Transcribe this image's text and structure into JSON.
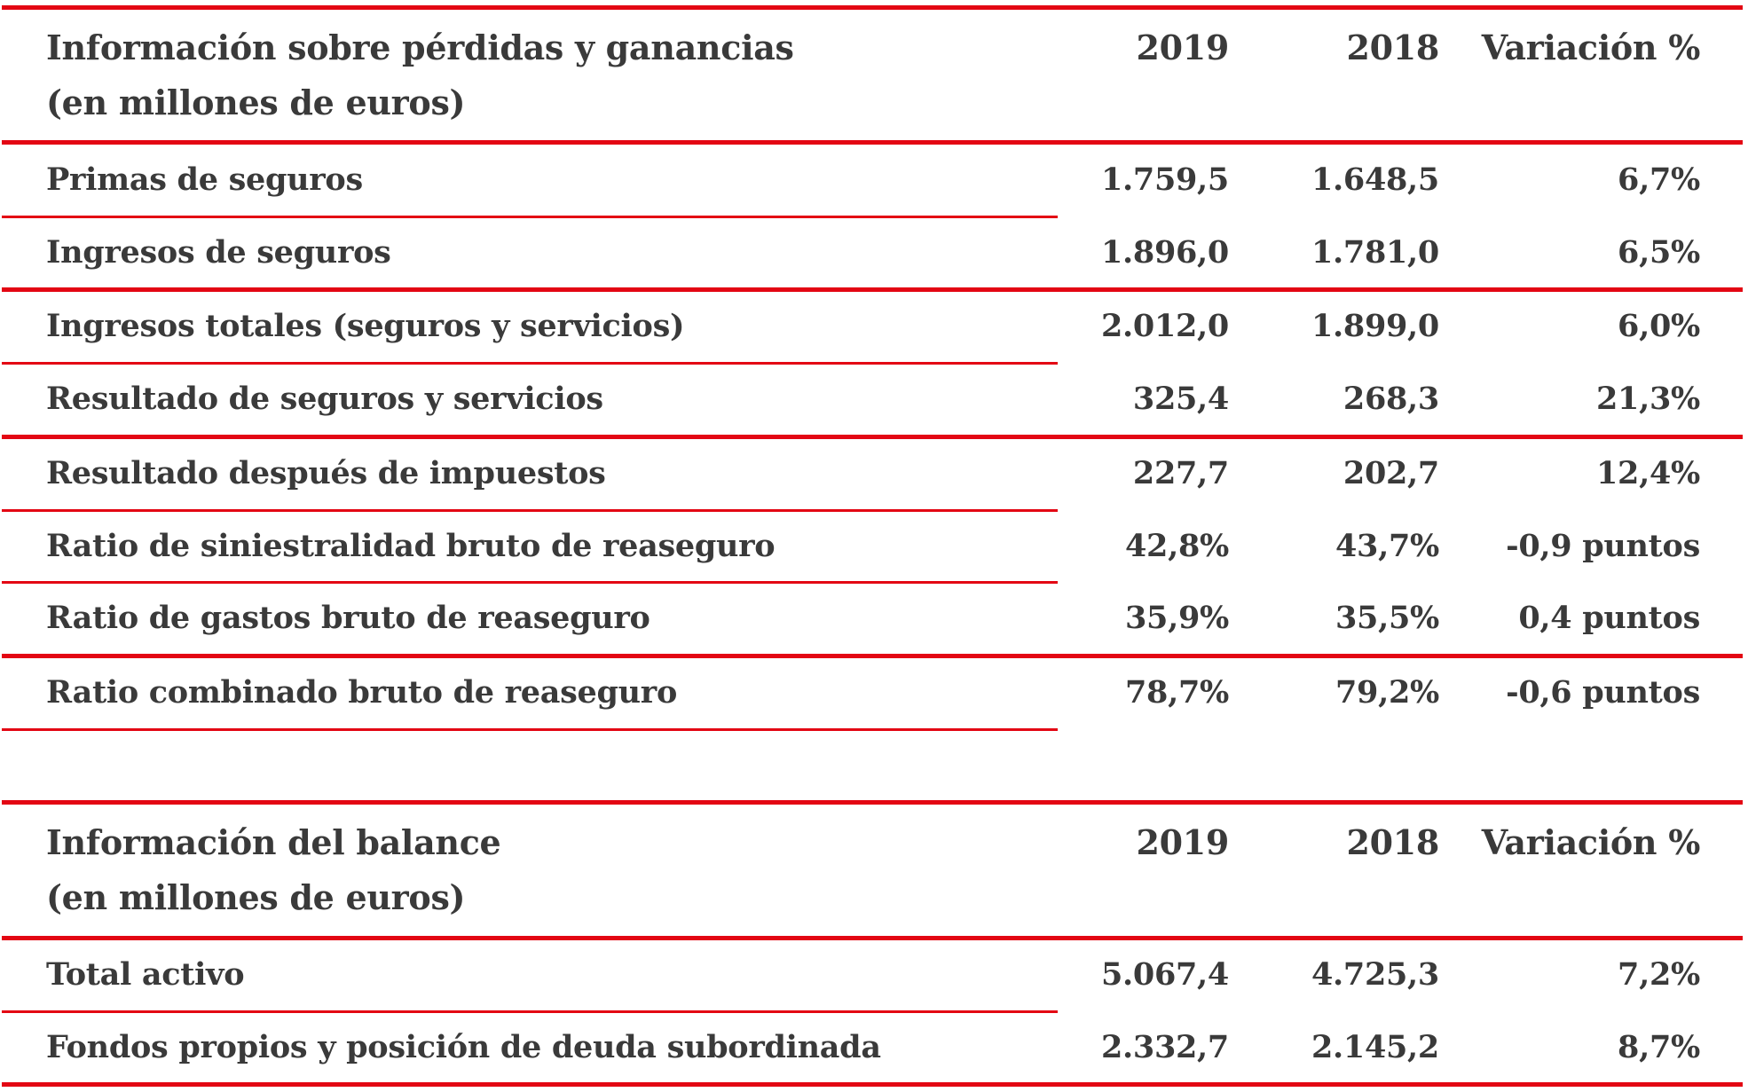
{
  "pnl": {
    "title_line1": "Información sobre pérdidas y ganancias",
    "title_line2": "(en millones de euros)",
    "col_2019": "2019",
    "col_2018": "2018",
    "col_var": "Variación %",
    "rows": [
      {
        "label": "Primas de seguros",
        "v2019": "1.759,5",
        "v2018": "1.648,5",
        "var": "6,7%"
      },
      {
        "label": "Ingresos de seguros",
        "v2019": "1.896,0",
        "v2018": "1.781,0",
        "var": "6,5%"
      },
      {
        "label": "Ingresos totales (seguros y servicios)",
        "v2019": "2.012,0",
        "v2018": "1.899,0",
        "var": "6,0%"
      },
      {
        "label": "Resultado de seguros y servicios",
        "v2019": "325,4",
        "v2018": "268,3",
        "var": "21,3%"
      },
      {
        "label": "Resultado después de impuestos",
        "v2019": "227,7",
        "v2018": "202,7",
        "var": "12,4%"
      },
      {
        "label": "Ratio de siniestralidad bruto de reaseguro",
        "v2019": "42,8%",
        "v2018": "43,7%",
        "var": "-0,9 puntos"
      },
      {
        "label": "Ratio de gastos bruto de reaseguro",
        "v2019": "35,9%",
        "v2018": "35,5%",
        "var": "0,4 puntos"
      },
      {
        "label": "Ratio combinado bruto de reaseguro",
        "v2019": "78,7%",
        "v2018": "79,2%",
        "var": "-0,6 puntos"
      }
    ]
  },
  "balance": {
    "title_line1": "Información del balance",
    "title_line2": "(en millones de euros)",
    "col_2019": "2019",
    "col_2018": "2018",
    "col_var": "Variación %",
    "rows": [
      {
        "label": "Total activo",
        "v2019": "5.067,4",
        "v2018": "4.725,3",
        "var": "7,2%"
      },
      {
        "label": "Fondos propios y posición de deuda subordinada",
        "v2019": "2.332,7",
        "v2018": "2.145,2",
        "var": "8,7%"
      }
    ]
  },
  "colors": {
    "accent": "#e30613",
    "text": "#3a3a3a"
  }
}
